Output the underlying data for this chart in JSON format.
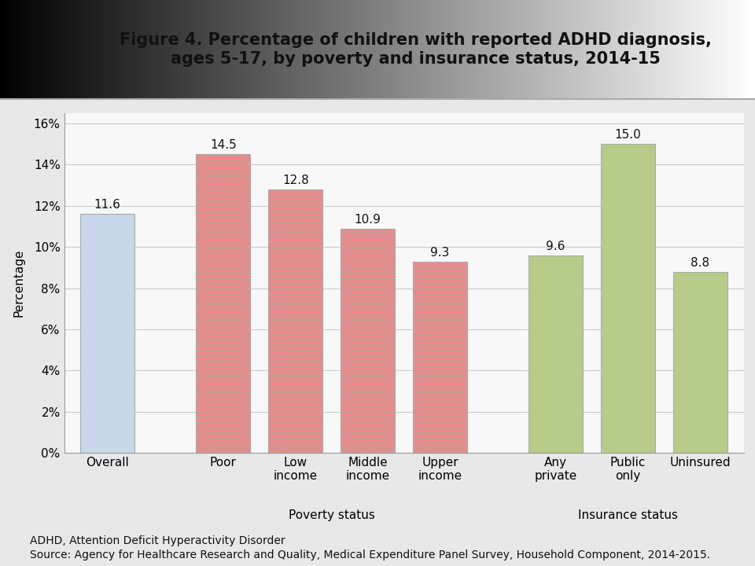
{
  "title": "Figure 4. Percentage of children with reported ADHD diagnosis,\nages 5-17, by poverty and insurance status, 2014-15",
  "categories": [
    "Overall",
    "Poor",
    "Low\nincome",
    "Middle\nincome",
    "Upper\nincome",
    "Any\nprivate",
    "Public\nonly",
    "Uninsured"
  ],
  "values": [
    11.6,
    14.5,
    12.8,
    10.9,
    9.3,
    9.6,
    15.0,
    8.8
  ],
  "bar_colors": [
    "#c8d8ea",
    "#f08888",
    "#f08888",
    "#f08888",
    "#f08888",
    "#b8cc8a",
    "#b8cc8a",
    "#b8cc8a"
  ],
  "use_hatch": [
    false,
    true,
    true,
    true,
    true,
    false,
    false,
    false
  ],
  "x_positions": [
    0,
    1.6,
    2.6,
    3.6,
    4.6,
    6.2,
    7.2,
    8.2
  ],
  "poverty_group_indices": [
    1,
    2,
    3,
    4
  ],
  "insurance_group_indices": [
    5,
    6,
    7
  ],
  "ylabel": "Percentage",
  "ylim_max": 0.165,
  "yticks": [
    0,
    0.02,
    0.04,
    0.06,
    0.08,
    0.1,
    0.12,
    0.14,
    0.16
  ],
  "ytick_labels": [
    "0%",
    "2%",
    "4%",
    "6%",
    "8%",
    "10%",
    "12%",
    "14%",
    "16%"
  ],
  "xlabel_poverty": "Poverty status",
  "xlabel_insurance": "Insurance status",
  "footnote_line1": "ADHD, Attention Deficit Hyperactivity Disorder",
  "footnote_line2": "Source: Agency for Healthcare Research and Quality, Medical Expenditure Panel Survey, Household Component, 2014-2015.",
  "title_fontsize": 15,
  "label_fontsize": 11,
  "tick_fontsize": 11,
  "value_fontsize": 11,
  "footnote_fontsize": 10,
  "bar_edge_color": "#aaaaaa",
  "bar_width": 0.75
}
